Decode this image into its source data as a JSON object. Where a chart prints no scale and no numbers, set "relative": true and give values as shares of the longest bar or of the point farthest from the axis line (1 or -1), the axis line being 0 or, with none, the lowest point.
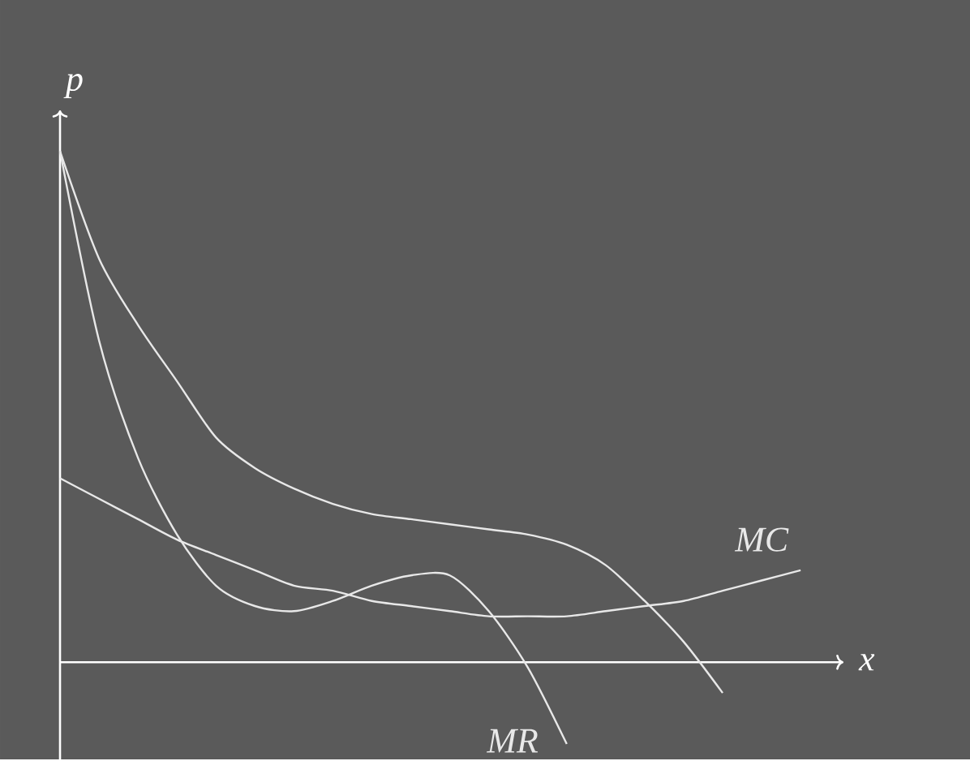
{
  "chart_data": {
    "type": "line",
    "relative": true,
    "xlabel": "x",
    "ylabel": "p",
    "categories": [
      null,
      null,
      null,
      null,
      null,
      null,
      null,
      null,
      null,
      null,
      null,
      null,
      null,
      null,
      null,
      null,
      null,
      null,
      null,
      null
    ],
    "series": [
      {
        "color": "#e8e8e8",
        "values": [
          1.0,
          0.79,
          0.66,
          0.55,
          0.44,
          0.38,
          0.34,
          0.31,
          0.29,
          0.28,
          0.27,
          0.26,
          0.25,
          0.23,
          0.19,
          0.12,
          0.04,
          -0.06,
          null,
          null
        ]
      },
      {
        "name": "MR",
        "color": "#e8e8e8",
        "values": [
          1.0,
          0.63,
          0.4,
          0.25,
          0.15,
          0.11,
          0.1,
          0.12,
          0.15,
          0.17,
          0.17,
          0.1,
          -0.01,
          -0.16,
          null,
          null,
          null,
          null,
          null,
          null
        ]
      },
      {
        "name": "MC",
        "color": "#e8e8e8",
        "values": [
          0.36,
          0.32,
          0.28,
          0.24,
          0.21,
          0.18,
          0.15,
          0.14,
          0.12,
          0.11,
          0.1,
          0.09,
          0.09,
          0.09,
          0.1,
          0.11,
          0.12,
          0.14,
          0.16,
          0.18
        ]
      }
    ]
  }
}
